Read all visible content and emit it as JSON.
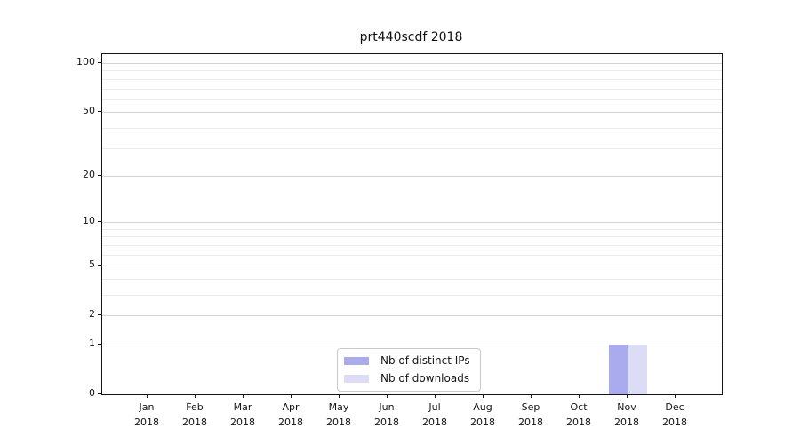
{
  "chart_data": {
    "type": "bar",
    "title": "prt440scdf 2018",
    "categories": [
      {
        "month": "Jan",
        "year": "2018"
      },
      {
        "month": "Feb",
        "year": "2018"
      },
      {
        "month": "Mar",
        "year": "2018"
      },
      {
        "month": "Apr",
        "year": "2018"
      },
      {
        "month": "May",
        "year": "2018"
      },
      {
        "month": "Jun",
        "year": "2018"
      },
      {
        "month": "Jul",
        "year": "2018"
      },
      {
        "month": "Aug",
        "year": "2018"
      },
      {
        "month": "Sep",
        "year": "2018"
      },
      {
        "month": "Oct",
        "year": "2018"
      },
      {
        "month": "Nov",
        "year": "2018"
      },
      {
        "month": "Dec",
        "year": "2018"
      }
    ],
    "series": [
      {
        "name": "Nb of distinct IPs",
        "color": "#aaaaee",
        "values": [
          0,
          0,
          0,
          0,
          0,
          0,
          0,
          0,
          0,
          0,
          1,
          0
        ]
      },
      {
        "name": "Nb of downloads",
        "color": "#dcdcf6",
        "values": [
          0,
          0,
          0,
          0,
          0,
          0,
          0,
          0,
          0,
          0,
          1,
          0
        ]
      }
    ],
    "xlabel": "",
    "ylabel": "",
    "yscale": "log(1+x)",
    "yticks": [
      0,
      1,
      2,
      5,
      10,
      20,
      50,
      100
    ],
    "ylim": [
      0,
      113
    ],
    "grid": {
      "horizontal": true,
      "minor_values": [
        3,
        4,
        6,
        7,
        8,
        9,
        30,
        40,
        60,
        70,
        80,
        90
      ]
    },
    "legend": {
      "position": "lower center"
    }
  }
}
